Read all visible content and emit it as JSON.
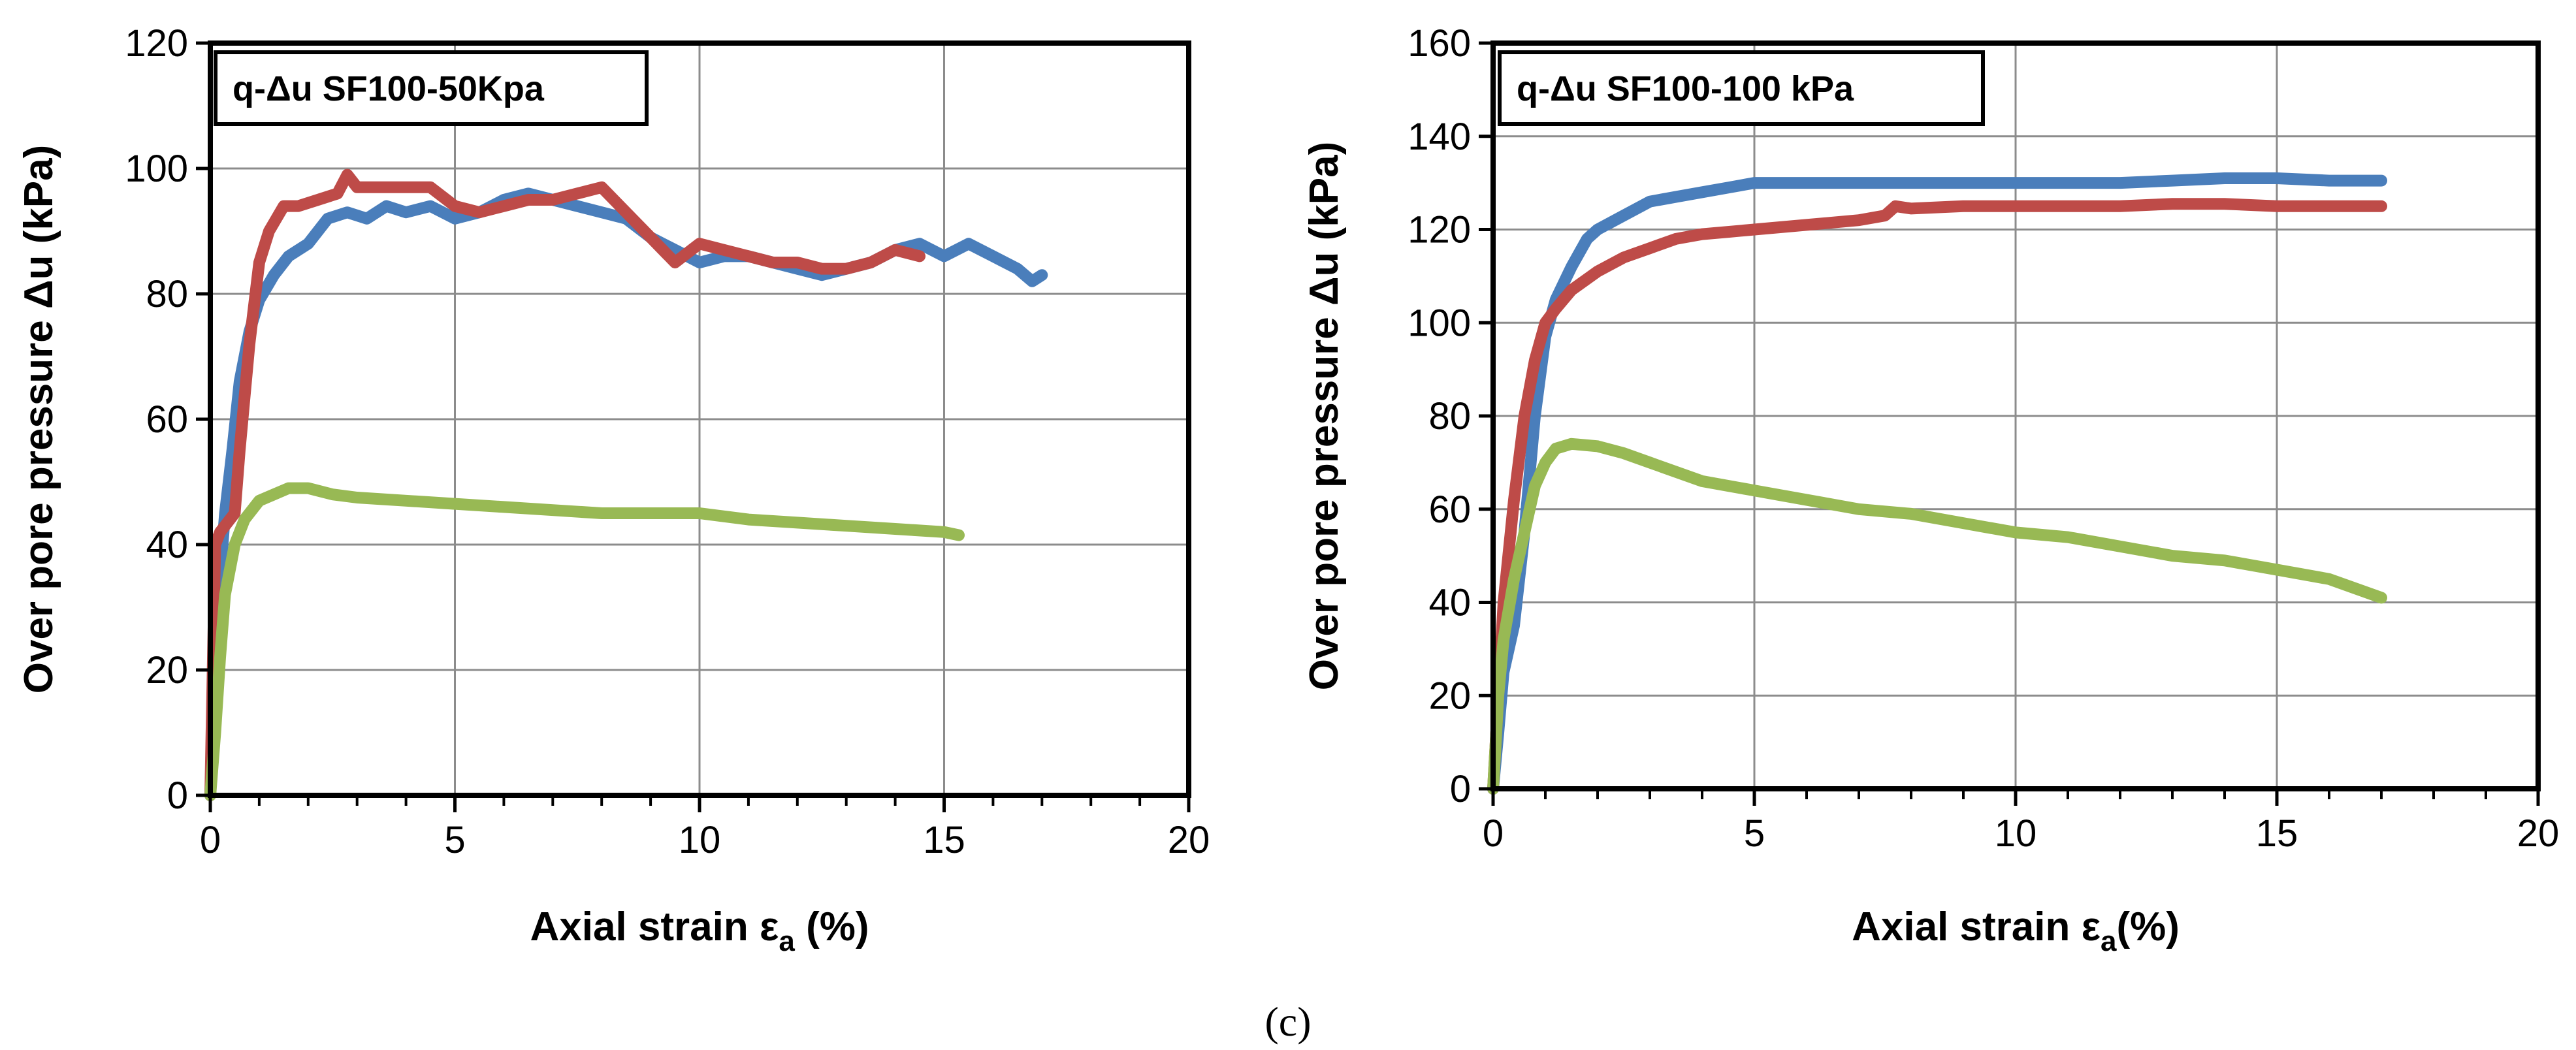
{
  "caption": "(c)",
  "chart_data": [
    {
      "type": "line",
      "title": "q-Δu SF100-50Kpa",
      "xlabel_main": "Axial strain ε",
      "xlabel_sub": "a",
      "xlabel_tail": " (%)",
      "ylabel": "Over pore pressure Δu (kPa)",
      "xlim": [
        0,
        20
      ],
      "ylim": [
        0,
        120
      ],
      "xticks": [
        0,
        5,
        10,
        15,
        20
      ],
      "yticks": [
        0,
        20,
        40,
        60,
        80,
        100,
        120
      ],
      "x_minor_step": 1,
      "grid": true,
      "series": [
        {
          "name": "blue",
          "color": "#4a7ebb",
          "x": [
            0,
            0.1,
            0.2,
            0.3,
            0.45,
            0.6,
            0.8,
            1.0,
            1.3,
            1.6,
            2.0,
            2.4,
            2.8,
            3.2,
            3.6,
            4.0,
            4.5,
            5.0,
            5.5,
            6.0,
            6.5,
            7.0,
            7.5,
            8.0,
            8.5,
            9.0,
            9.5,
            10.0,
            10.5,
            11.0,
            11.5,
            12.0,
            12.5,
            13.0,
            13.5,
            14.0,
            14.5,
            15.0,
            15.5,
            16.0,
            16.5,
            16.8,
            17.0
          ],
          "y": [
            0,
            20,
            35,
            45,
            55,
            66,
            74,
            79,
            83,
            86,
            88,
            92,
            93,
            92,
            94,
            93,
            94,
            92,
            93,
            95,
            96,
            95,
            94,
            93,
            92,
            89,
            87,
            85,
            86,
            86,
            85,
            84,
            83,
            84,
            85,
            87,
            88,
            86,
            88,
            86,
            84,
            82,
            83
          ]
        },
        {
          "name": "red",
          "color": "#be4b48",
          "x": [
            0,
            0.05,
            0.1,
            0.2,
            0.3,
            0.5,
            0.6,
            0.8,
            1.0,
            1.2,
            1.5,
            1.8,
            2.2,
            2.6,
            2.8,
            3.0,
            3.5,
            4.0,
            4.5,
            5.0,
            5.5,
            6.0,
            6.5,
            7.0,
            7.5,
            8.0,
            8.5,
            9.0,
            9.5,
            10.0,
            10.5,
            11.0,
            11.5,
            12.0,
            12.5,
            13.0,
            13.5,
            14.0,
            14.5
          ],
          "y": [
            0,
            20,
            40,
            42,
            43,
            45,
            55,
            72,
            85,
            90,
            94,
            94,
            95,
            96,
            99,
            97,
            97,
            97,
            97,
            94,
            93,
            94,
            95,
            95,
            96,
            97,
            93,
            89,
            85,
            88,
            87,
            86,
            85,
            85,
            84,
            84,
            85,
            87,
            86
          ]
        },
        {
          "name": "green",
          "color": "#98b954",
          "x": [
            0,
            0.1,
            0.2,
            0.3,
            0.5,
            0.7,
            1.0,
            1.3,
            1.6,
            2.0,
            2.5,
            3.0,
            4.0,
            5.0,
            6.0,
            7.0,
            8.0,
            9.0,
            10.0,
            11.0,
            12.0,
            13.0,
            14.0,
            15.0,
            15.3
          ],
          "y": [
            0,
            10,
            22,
            32,
            40,
            44,
            47,
            48,
            49,
            49,
            48,
            47.5,
            47,
            46.5,
            46,
            45.5,
            45,
            45,
            45,
            44,
            43.5,
            43,
            42.5,
            42,
            41.5
          ]
        }
      ]
    },
    {
      "type": "line",
      "title": "q-Δu SF100-100 kPa",
      "xlabel_main": "Axial strain ε",
      "xlabel_sub": "a",
      "xlabel_tail": "(%)",
      "ylabel": "Over pore pressure Δu (kPa)",
      "xlim": [
        0,
        20
      ],
      "ylim": [
        0,
        160
      ],
      "xticks": [
        0,
        5,
        10,
        15,
        20
      ],
      "yticks": [
        0,
        20,
        40,
        60,
        80,
        100,
        120,
        140,
        160
      ],
      "x_minor_step": 1,
      "grid": true,
      "series": [
        {
          "name": "blue",
          "color": "#4a7ebb",
          "x": [
            0,
            0.1,
            0.2,
            0.4,
            0.6,
            0.8,
            1.0,
            1.2,
            1.5,
            1.8,
            2.0,
            2.5,
            3.0,
            3.5,
            4.0,
            4.5,
            5.0,
            6.0,
            7.0,
            8.0,
            9.0,
            10.0,
            11.0,
            12.0,
            13.0,
            14.0,
            15.0,
            16.0,
            17.0
          ],
          "y": [
            0,
            12,
            25,
            35,
            55,
            80,
            97,
            105,
            112,
            118,
            120,
            123,
            126,
            127,
            128,
            129,
            130,
            130,
            130,
            130,
            130,
            130,
            130,
            130,
            130.5,
            131,
            131,
            130.5,
            130.5
          ]
        },
        {
          "name": "red",
          "color": "#be4b48",
          "x": [
            0,
            0.1,
            0.2,
            0.4,
            0.6,
            0.8,
            1.0,
            1.2,
            1.5,
            2.0,
            2.5,
            3.0,
            3.5,
            4.0,
            4.5,
            5.0,
            6.0,
            7.0,
            7.5,
            7.7,
            8.0,
            9.0,
            10.0,
            11.0,
            12.0,
            13.0,
            14.0,
            15.0,
            16.0,
            17.0
          ],
          "y": [
            0,
            20,
            40,
            62,
            80,
            92,
            100,
            103,
            107,
            111,
            114,
            116,
            118,
            119,
            119.5,
            120,
            121,
            122,
            123,
            125,
            124.5,
            125,
            125,
            125,
            125,
            125.5,
            125.5,
            125,
            125,
            125
          ]
        },
        {
          "name": "green",
          "color": "#98b954",
          "x": [
            0,
            0.1,
            0.2,
            0.4,
            0.6,
            0.8,
            1.0,
            1.2,
            1.5,
            2.0,
            2.5,
            3.0,
            4.0,
            5.0,
            6.0,
            7.0,
            8.0,
            9.0,
            10.0,
            11.0,
            12.0,
            13.0,
            14.0,
            15.0,
            16.0,
            17.0
          ],
          "y": [
            0,
            20,
            32,
            45,
            55,
            65,
            70,
            73,
            74,
            73.5,
            72,
            70,
            66,
            64,
            62,
            60,
            59,
            57,
            55,
            54,
            52,
            50,
            49,
            47,
            45,
            41
          ]
        }
      ]
    }
  ]
}
